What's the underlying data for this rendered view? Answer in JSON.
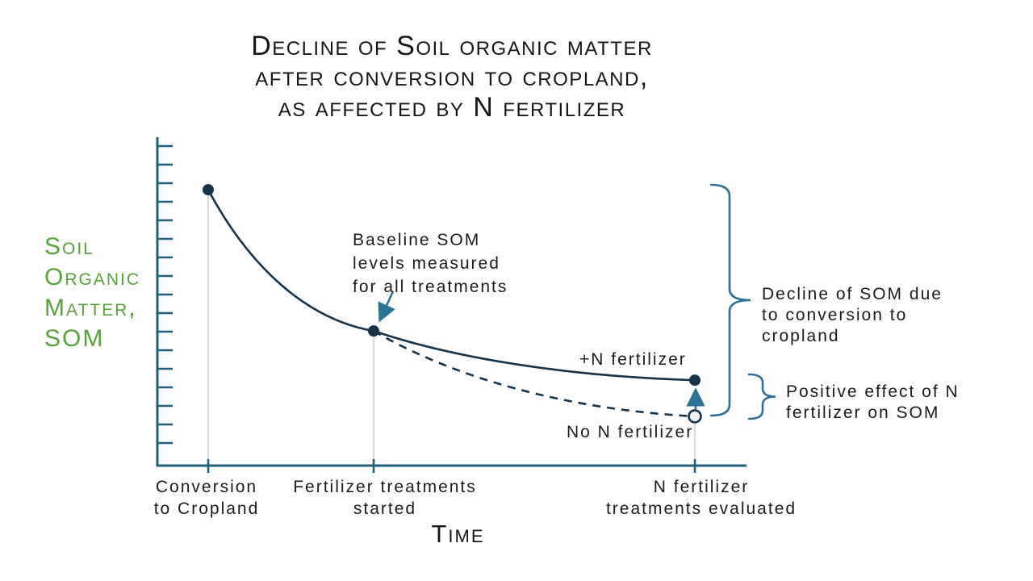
{
  "title": {
    "lines": [
      "Decline of Soil organic matter",
      "after conversion to cropland,",
      "as affected by N fertilizer"
    ]
  },
  "axes": {
    "y_label_lines": [
      "Soil",
      "Organic",
      "Matter,",
      "SOM"
    ],
    "x_label": "Time"
  },
  "chart_data": {
    "type": "line",
    "title": "Decline of Soil organic matter after conversion to cropland, as affected by N fertilizer",
    "xlabel": "Time",
    "ylabel": "Soil Organic Matter, SOM",
    "x_categories": [
      "Conversion to Cropland",
      "Fertilizer treatments started",
      "N fertilizer treatments evaluated"
    ],
    "x_tick_labels": [
      [
        "Conversion",
        "to Cropland"
      ],
      [
        "Fertilizer treatments",
        "started"
      ],
      [
        "N fertilizer",
        "treatments evaluated"
      ]
    ],
    "y_axis": {
      "numeric_labels": false,
      "tick_count": 17,
      "scale": "relative SOM level",
      "range_relative": [
        0,
        1
      ]
    },
    "grid": false,
    "legend_position": "inline-labels",
    "series": [
      {
        "name": "+N fertilizer",
        "line_style": "solid",
        "marker": "filled-dot",
        "values_relative": [
          0.84,
          0.41,
          0.26
        ]
      },
      {
        "name": "No N fertilizer",
        "line_style": "dashed",
        "marker": "open-dot-at-end",
        "values_relative": [
          0.84,
          0.41,
          0.15
        ]
      }
    ]
  },
  "annotations": {
    "baseline": {
      "lines": [
        "Baseline SOM",
        "levels measured",
        "for all treatments"
      ]
    },
    "decline": {
      "lines": [
        "Decline of SOM due",
        "to conversion to",
        "cropland"
      ]
    },
    "positive": {
      "lines": [
        "Positive effect of N",
        "fertilizer on SOM"
      ]
    }
  },
  "colors": {
    "axis": "#1e5f7d",
    "curve": "#16334a",
    "accent_arrow": "#2d7396",
    "brace": "#2c7191",
    "green_label": "#56a33c",
    "text": "#1b1b1b",
    "drop_line": "#d9d9d9",
    "open_marker_fill": "#eef0ef"
  }
}
